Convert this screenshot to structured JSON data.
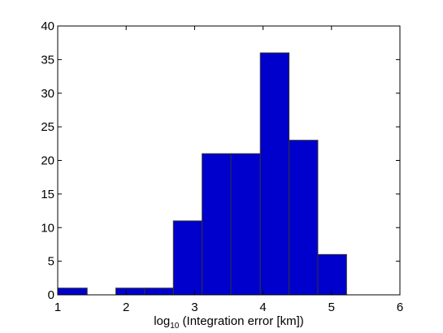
{
  "chart_data": {
    "type": "bar",
    "subtype": "histogram",
    "title": "",
    "xlabel_prefix": "log",
    "xlabel_subscript": "10",
    "xlabel_suffix": " (Integration error [km])",
    "ylabel": "",
    "xlim": [
      1,
      6
    ],
    "ylim": [
      0,
      40
    ],
    "xticks": [
      1,
      2,
      3,
      4,
      5,
      6
    ],
    "yticks": [
      0,
      5,
      10,
      15,
      20,
      25,
      30,
      35,
      40
    ],
    "grid": false,
    "legend": "none",
    "bar_color": "#0000cc",
    "edge_color": "#333333",
    "bins": [
      {
        "x0": 1.0,
        "x1": 1.43,
        "count": 1
      },
      {
        "x0": 1.43,
        "x1": 1.85,
        "count": 0
      },
      {
        "x0": 1.85,
        "x1": 2.27,
        "count": 1
      },
      {
        "x0": 2.27,
        "x1": 2.69,
        "count": 1
      },
      {
        "x0": 2.69,
        "x1": 3.11,
        "count": 11
      },
      {
        "x0": 3.11,
        "x1": 3.53,
        "count": 21
      },
      {
        "x0": 3.53,
        "x1": 3.96,
        "count": 21
      },
      {
        "x0": 3.96,
        "x1": 4.38,
        "count": 36
      },
      {
        "x0": 4.38,
        "x1": 4.8,
        "count": 23
      },
      {
        "x0": 4.8,
        "x1": 5.22,
        "count": 6
      }
    ]
  }
}
